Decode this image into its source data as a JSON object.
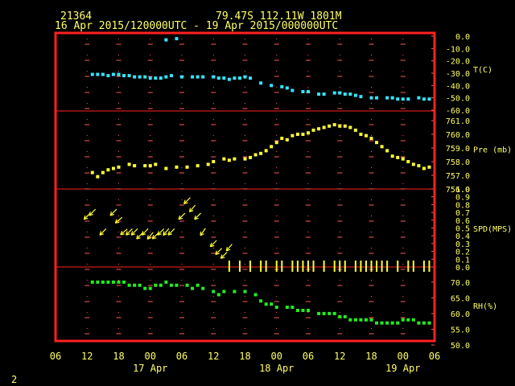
{
  "header": {
    "station_id": "21364",
    "location": "79.47S  112.11W  1801M",
    "time_range": "16 Apr 2015/120000UTC - 19 Apr 2015/000000UTC"
  },
  "footer": {
    "page_number": "2"
  },
  "colors": {
    "frame": "#ff2020",
    "grid": "#ff5a5a",
    "text": "#ffff66",
    "temperature": "#33e6ff",
    "pressure": "#ffff33",
    "wind": "#ffff33",
    "humidity": "#22ee22"
  },
  "x_axis": {
    "hour_labels": [
      "06",
      "12",
      "18",
      "00",
      "06",
      "12",
      "18",
      "00",
      "06",
      "12",
      "18",
      "00",
      "06"
    ],
    "day_labels": [
      "17 Apr",
      "18 Apr",
      "19 Apr"
    ],
    "range_hours_from_16Apr00UTC": [
      6,
      78
    ]
  },
  "chart_data": [
    {
      "type": "scatter",
      "name": "T(C)",
      "ylabel": "T(C)",
      "ylim": [
        -60,
        0
      ],
      "yticks": [
        "0.0",
        "-10.0",
        "-20.0",
        "-30.0",
        "-40.0",
        "-50.0",
        "-60.0"
      ],
      "x_hours": [
        13,
        14,
        15,
        16,
        17,
        18,
        19,
        20,
        21,
        22,
        23,
        24,
        25,
        26,
        27,
        28,
        30,
        32,
        33,
        34,
        36,
        37,
        38,
        39,
        40,
        41,
        42,
        43,
        45,
        47,
        49,
        50,
        51,
        53,
        54,
        56,
        57,
        59,
        60,
        61,
        62,
        63,
        64,
        66,
        67,
        69,
        70,
        71,
        72,
        73,
        75,
        76,
        77,
        27,
        29
      ],
      "values": [
        -31,
        -31,
        -31,
        -32,
        -31,
        -31,
        -32,
        -32,
        -33,
        -33,
        -33,
        -34,
        -34,
        -34,
        -33,
        -32,
        -33,
        -33,
        -33,
        -33,
        -33,
        -34,
        -34,
        -35,
        -34,
        -34,
        -33,
        -34,
        -38,
        -40,
        -41,
        -42,
        -44,
        -45,
        -45,
        -47,
        -47,
        -46,
        -46,
        -47,
        -47,
        -48,
        -49,
        -50,
        -50,
        -50,
        -50,
        -51,
        -51,
        -51,
        -50,
        -51,
        -51,
        -3,
        -2
      ]
    },
    {
      "type": "scatter",
      "name": "Pre (mb)",
      "ylabel": "Pre (mb)",
      "ylim": [
        756,
        761
      ],
      "yticks": [
        "761.0",
        "760.0",
        "759.0",
        "758.0",
        "757.0",
        "756.0"
      ],
      "x_hours": [
        13,
        14,
        15,
        16,
        17,
        18,
        20,
        21,
        23,
        24,
        25,
        27,
        29,
        31,
        33,
        35,
        36,
        38,
        39,
        40,
        42,
        43,
        44,
        45,
        46,
        47,
        48,
        49,
        50,
        51,
        52,
        53,
        54,
        55,
        56,
        57,
        58,
        59,
        60,
        61,
        62,
        63,
        64,
        65,
        66,
        67,
        68,
        69,
        70,
        71,
        72,
        73,
        74,
        75,
        76,
        77
      ],
      "values": [
        757.2,
        756.9,
        757.2,
        757.4,
        757.5,
        757.6,
        757.8,
        757.7,
        757.7,
        757.7,
        757.8,
        757.5,
        757.6,
        757.6,
        757.7,
        757.8,
        758.0,
        758.2,
        758.1,
        758.2,
        758.2,
        758.3,
        758.5,
        758.6,
        758.8,
        759.1,
        759.4,
        759.7,
        759.6,
        759.9,
        760.0,
        760.0,
        760.1,
        760.3,
        760.4,
        760.5,
        760.6,
        760.7,
        760.6,
        760.6,
        760.5,
        760.3,
        760.0,
        759.9,
        759.7,
        759.4,
        759.1,
        758.8,
        758.4,
        758.3,
        758.2,
        758.0,
        757.8,
        757.7,
        757.5,
        757.6
      ]
    },
    {
      "type": "scatter",
      "name": "SPD(MPS)",
      "ylabel": "SPD(MPS)",
      "ylim": [
        0,
        1
      ],
      "yticks": [
        "1.0",
        "0.9",
        "0.8",
        "0.7",
        "0.6",
        "0.5",
        "0.4",
        "0.3",
        "0.2",
        "0.1",
        "0.0"
      ],
      "x_hours": [
        12,
        13,
        15,
        17,
        18,
        19,
        20,
        21,
        22,
        23,
        24,
        25,
        26,
        27,
        28,
        30,
        31,
        32,
        33,
        34,
        36,
        37,
        38,
        39
      ],
      "speed_mps": [
        0.65,
        0.7,
        0.45,
        0.7,
        0.6,
        0.45,
        0.45,
        0.45,
        0.4,
        0.45,
        0.4,
        0.4,
        0.45,
        0.45,
        0.45,
        0.65,
        0.85,
        0.75,
        0.65,
        0.45,
        0.3,
        0.2,
        0.15,
        0.25
      ],
      "direction_deg": [
        45,
        45,
        45,
        45,
        50,
        50,
        45,
        45,
        45,
        45,
        40,
        45,
        45,
        40,
        45,
        45,
        45,
        40,
        45,
        35,
        45,
        45,
        45,
        40
      ],
      "calm_marks_x_hours": [
        39,
        41,
        43,
        45,
        46,
        48,
        49,
        51,
        52,
        53,
        54,
        55,
        57,
        59,
        60,
        61,
        63,
        64,
        65,
        66,
        67,
        68,
        69,
        71,
        73,
        74,
        76,
        77
      ]
    },
    {
      "type": "scatter",
      "name": "RH(%)",
      "ylabel": "RH(%)",
      "ylim": [
        50,
        72
      ],
      "yticks": [
        "70.0",
        "65.0",
        "60.0",
        "55.0",
        "50.0"
      ],
      "x_hours": [
        13,
        14,
        15,
        16,
        17,
        18,
        19,
        20,
        21,
        22,
        23,
        24,
        25,
        26,
        27,
        28,
        29,
        31,
        32,
        33,
        34,
        36,
        37,
        38,
        40,
        42,
        44,
        45,
        46,
        47,
        48,
        50,
        51,
        52,
        53,
        54,
        56,
        57,
        58,
        59,
        60,
        61,
        62,
        63,
        64,
        65,
        66,
        67,
        68,
        69,
        70,
        71,
        72,
        73,
        74,
        75,
        76,
        77
      ],
      "values": [
        70,
        70,
        70,
        70,
        70,
        70,
        70,
        69,
        69,
        69,
        68,
        68,
        69,
        69,
        70,
        69,
        69,
        69,
        68,
        69,
        68,
        67,
        66,
        67,
        67,
        67,
        66,
        64,
        63,
        63,
        62,
        62,
        62,
        61,
        61,
        61,
        60,
        60,
        60,
        60,
        59,
        59,
        58,
        58,
        58,
        58,
        58,
        57,
        57,
        57,
        57,
        57,
        58,
        58,
        58,
        57,
        57,
        57
      ]
    }
  ]
}
